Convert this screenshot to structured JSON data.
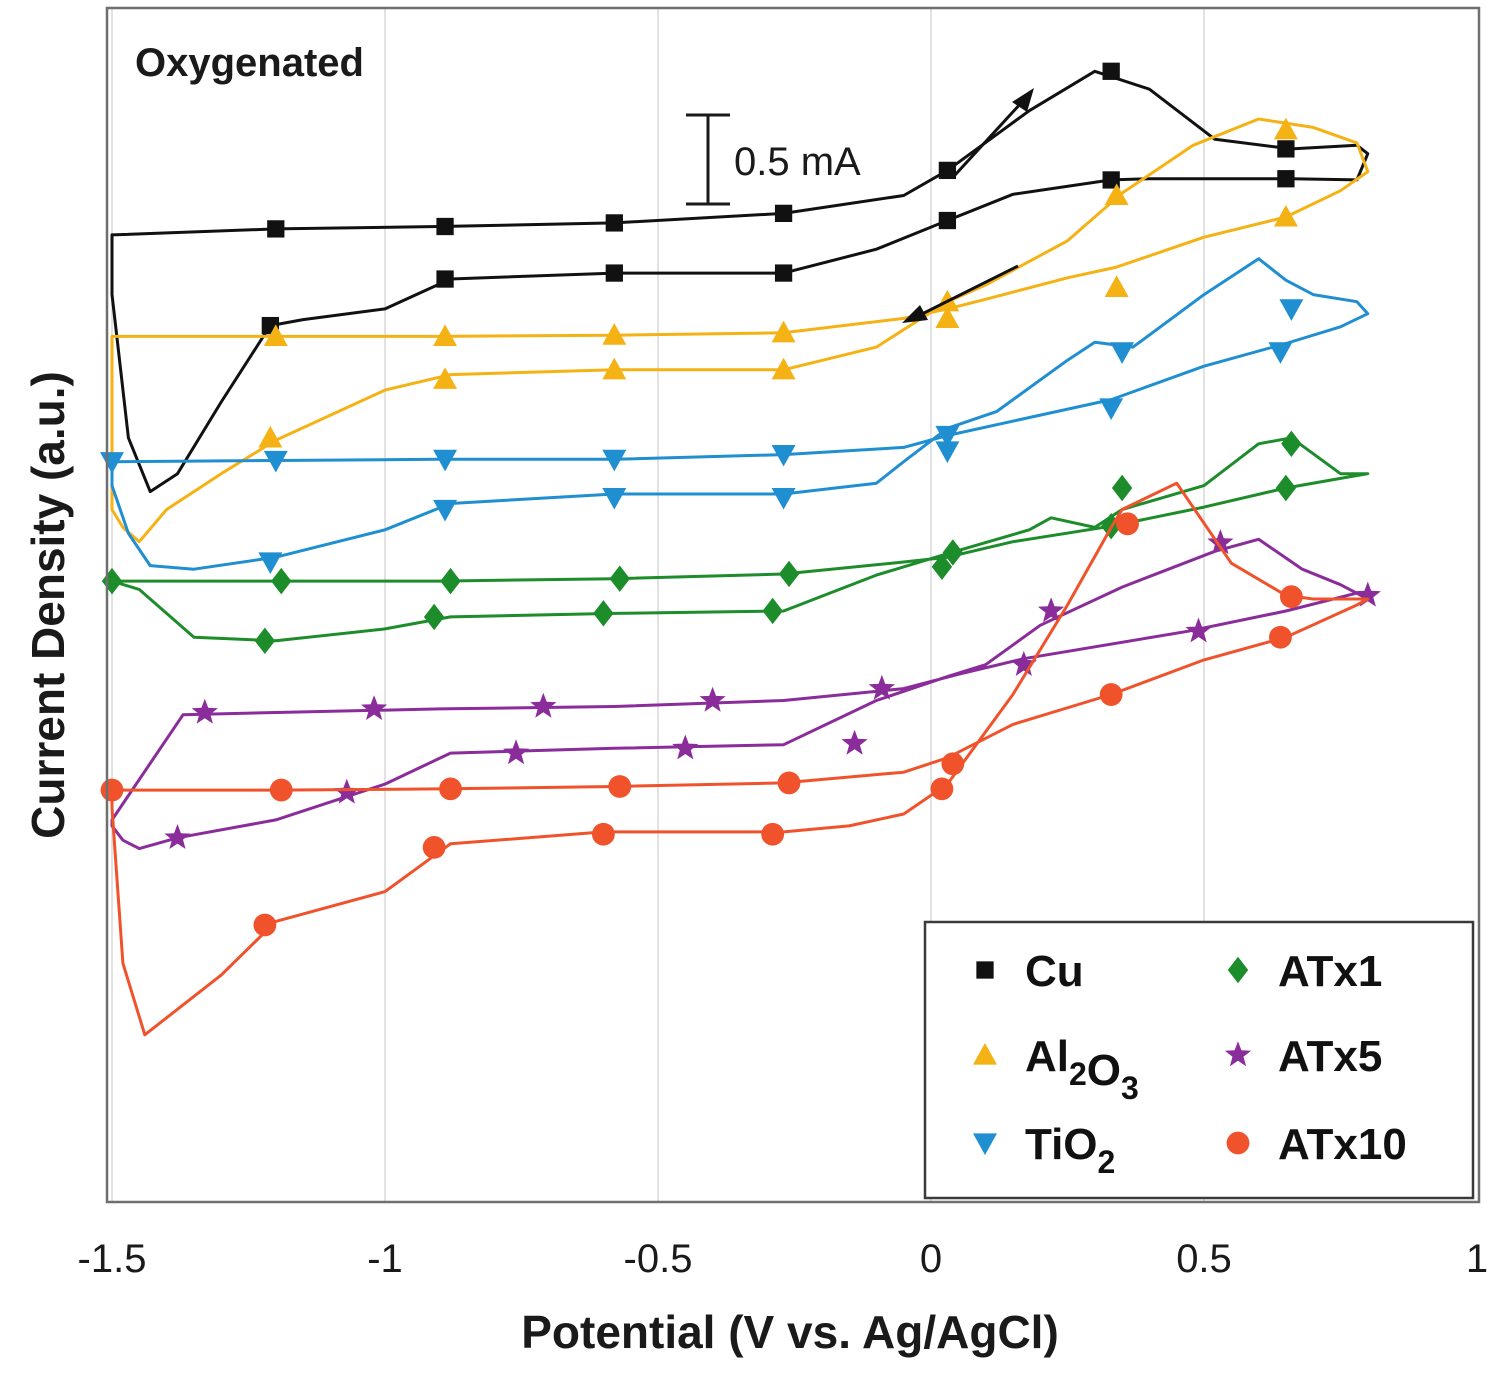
{
  "chart_data": {
    "type": "line",
    "title": "Oxygenated",
    "xlabel": "Potential (V vs. Ag/AgCl)",
    "ylabel": "Current Density (a.u.)",
    "xlim": [
      -1.5,
      1
    ],
    "ylim": [
      0,
      100
    ],
    "x_ticks": [
      -1.5,
      -1,
      -0.5,
      0,
      0.5,
      1
    ],
    "x_tick_labels": [
      "-1.5",
      "-1",
      "-0.5",
      "0",
      "0.5",
      "1"
    ],
    "grid": "vertical",
    "scale_bar": {
      "label": "0.5 mA",
      "value_mA": 0.5,
      "span_y": 8.3
    },
    "scan_direction": [
      "forward: rightward on the upper Cu branch",
      "reverse: leftward on the lower Cu branch"
    ],
    "legend_position": "bottom-right",
    "series": [
      {
        "name": "Cu",
        "key": "cu",
        "color": "#111111",
        "marker": "square",
        "path": [
          [
            -1.5,
            81.0
          ],
          [
            -1.2,
            81.5
          ],
          [
            -0.9,
            81.7
          ],
          [
            -0.58,
            82.0
          ],
          [
            -0.27,
            82.8
          ],
          [
            -0.05,
            84.3
          ],
          [
            0.03,
            86.4
          ],
          [
            0.18,
            91.4
          ],
          [
            0.3,
            94.7
          ],
          [
            0.4,
            93.2
          ],
          [
            0.52,
            89.0
          ],
          [
            0.66,
            88.2
          ],
          [
            0.78,
            88.5
          ],
          [
            0.8,
            87.8
          ],
          [
            0.78,
            85.6
          ],
          [
            0.66,
            85.7
          ],
          [
            0.4,
            85.7
          ],
          [
            0.33,
            85.6
          ],
          [
            0.15,
            84.4
          ],
          [
            0.03,
            82.2
          ],
          [
            -0.1,
            79.8
          ],
          [
            -0.27,
            77.8
          ],
          [
            -0.58,
            77.8
          ],
          [
            -0.88,
            77.3
          ],
          [
            -1.0,
            74.8
          ],
          [
            -1.15,
            73.9
          ],
          [
            -1.21,
            73.4
          ],
          [
            -1.3,
            67.0
          ],
          [
            -1.38,
            61.0
          ],
          [
            -1.43,
            59.5
          ],
          [
            -1.47,
            64.0
          ],
          [
            -1.49,
            72.0
          ],
          [
            -1.5,
            76.0
          ]
        ],
        "markers": [
          [
            -1.2,
            81.5
          ],
          [
            -0.89,
            81.7
          ],
          [
            -0.58,
            82.0
          ],
          [
            -0.27,
            82.8
          ],
          [
            0.03,
            86.4
          ],
          [
            0.33,
            94.7
          ],
          [
            0.65,
            88.2
          ],
          [
            0.65,
            85.7
          ],
          [
            0.33,
            85.6
          ],
          [
            0.03,
            82.2
          ],
          [
            -0.27,
            77.8
          ],
          [
            -0.58,
            77.8
          ],
          [
            -0.89,
            77.3
          ],
          [
            -1.21,
            73.4
          ]
        ]
      },
      {
        "name": "Al2O3",
        "key": "al2o3",
        "color": "#f5b215",
        "marker": "triangle-up",
        "path": [
          [
            -1.5,
            72.5
          ],
          [
            -1.2,
            72.5
          ],
          [
            -0.9,
            72.5
          ],
          [
            -0.58,
            72.6
          ],
          [
            -0.27,
            72.8
          ],
          [
            -0.05,
            74.0
          ],
          [
            0.03,
            74.8
          ],
          [
            0.1,
            75.6
          ],
          [
            0.25,
            77.4
          ],
          [
            0.34,
            78.3
          ],
          [
            0.5,
            80.8
          ],
          [
            0.65,
            82.5
          ],
          [
            0.75,
            84.7
          ],
          [
            0.8,
            86.3
          ],
          [
            0.78,
            88.7
          ],
          [
            0.7,
            90.0
          ],
          [
            0.6,
            90.7
          ],
          [
            0.48,
            88.5
          ],
          [
            0.35,
            84.5
          ],
          [
            0.25,
            80.5
          ],
          [
            0.1,
            76.8
          ],
          [
            0.03,
            75.4
          ],
          [
            -0.1,
            71.6
          ],
          [
            -0.27,
            69.7
          ],
          [
            -0.58,
            69.7
          ],
          [
            -0.88,
            69.3
          ],
          [
            -1.0,
            68.0
          ],
          [
            -1.2,
            63.8
          ],
          [
            -1.3,
            61.0
          ],
          [
            -1.4,
            58.0
          ],
          [
            -1.45,
            55.3
          ],
          [
            -1.48,
            56.5
          ],
          [
            -1.5,
            58.0
          ]
        ],
        "markers": [
          [
            -1.2,
            72.5
          ],
          [
            -0.89,
            72.5
          ],
          [
            -0.58,
            72.6
          ],
          [
            -0.27,
            72.8
          ],
          [
            0.03,
            74.0
          ],
          [
            0.34,
            76.6
          ],
          [
            0.65,
            82.5
          ],
          [
            0.65,
            89.8
          ],
          [
            0.34,
            84.3
          ],
          [
            0.03,
            75.4
          ],
          [
            -0.27,
            69.7
          ],
          [
            -0.58,
            69.7
          ],
          [
            -0.89,
            68.9
          ],
          [
            -1.21,
            64.0
          ]
        ]
      },
      {
        "name": "TiO2",
        "key": "tio2",
        "color": "#1f8fd2",
        "marker": "triangle-down",
        "path": [
          [
            -1.5,
            62.0
          ],
          [
            -1.2,
            62.1
          ],
          [
            -0.9,
            62.2
          ],
          [
            -0.58,
            62.2
          ],
          [
            -0.27,
            62.6
          ],
          [
            -0.05,
            63.2
          ],
          [
            0.03,
            64.2
          ],
          [
            0.33,
            67.2
          ],
          [
            0.5,
            70.0
          ],
          [
            0.65,
            71.9
          ],
          [
            0.75,
            73.3
          ],
          [
            0.8,
            74.4
          ],
          [
            0.78,
            75.4
          ],
          [
            0.7,
            76.0
          ],
          [
            0.65,
            77.2
          ],
          [
            0.6,
            79.0
          ],
          [
            0.5,
            76.0
          ],
          [
            0.37,
            71.6
          ],
          [
            0.3,
            72.0
          ],
          [
            0.25,
            70.5
          ],
          [
            0.12,
            66.2
          ],
          [
            0.03,
            64.8
          ],
          [
            -0.05,
            62.0
          ],
          [
            -0.1,
            60.2
          ],
          [
            -0.27,
            59.3
          ],
          [
            -0.58,
            59.3
          ],
          [
            -0.88,
            58.5
          ],
          [
            -1.0,
            56.3
          ],
          [
            -1.2,
            54.0
          ],
          [
            -1.35,
            53.0
          ],
          [
            -1.43,
            53.3
          ],
          [
            -1.47,
            56.0
          ],
          [
            -1.5,
            60.0
          ]
        ],
        "markers": [
          [
            -1.5,
            62.0
          ],
          [
            -1.2,
            62.1
          ],
          [
            -0.89,
            62.2
          ],
          [
            -0.58,
            62.2
          ],
          [
            -0.27,
            62.6
          ],
          [
            0.03,
            62.9
          ],
          [
            0.33,
            66.5
          ],
          [
            0.64,
            71.2
          ],
          [
            0.66,
            74.8
          ],
          [
            0.35,
            71.2
          ],
          [
            0.03,
            64.2
          ],
          [
            -0.27,
            59.0
          ],
          [
            -0.58,
            59.0
          ],
          [
            -0.89,
            58.0
          ],
          [
            -1.21,
            53.6
          ]
        ]
      },
      {
        "name": "ATx1",
        "key": "atx1",
        "color": "#1d8c2a",
        "marker": "diamond",
        "path": [
          [
            -1.5,
            52.0
          ],
          [
            -1.2,
            52.0
          ],
          [
            -0.9,
            52.0
          ],
          [
            -0.58,
            52.2
          ],
          [
            -0.27,
            52.6
          ],
          [
            -0.05,
            53.6
          ],
          [
            0.03,
            54.0
          ],
          [
            0.15,
            55.3
          ],
          [
            0.33,
            56.6
          ],
          [
            0.5,
            58.2
          ],
          [
            0.65,
            59.8
          ],
          [
            0.75,
            60.6
          ],
          [
            0.8,
            61.0
          ],
          [
            0.75,
            61.0
          ],
          [
            0.72,
            62.0
          ],
          [
            0.66,
            64.0
          ],
          [
            0.6,
            63.5
          ],
          [
            0.5,
            60.0
          ],
          [
            0.35,
            58.0
          ],
          [
            0.3,
            56.5
          ],
          [
            0.22,
            57.3
          ],
          [
            0.18,
            56.3
          ],
          [
            0.03,
            54.3
          ],
          [
            -0.1,
            52.5
          ],
          [
            -0.27,
            49.5
          ],
          [
            -0.58,
            49.3
          ],
          [
            -0.88,
            49.0
          ],
          [
            -1.0,
            48.0
          ],
          [
            -1.2,
            47.0
          ],
          [
            -1.35,
            47.3
          ],
          [
            -1.45,
            51.3
          ],
          [
            -1.5,
            52.0
          ]
        ],
        "markers": [
          [
            -1.5,
            52.0
          ],
          [
            -1.19,
            52.0
          ],
          [
            -0.88,
            52.0
          ],
          [
            -0.57,
            52.2
          ],
          [
            -0.26,
            52.6
          ],
          [
            0.02,
            53.2
          ],
          [
            0.33,
            56.6
          ],
          [
            0.65,
            59.8
          ],
          [
            0.66,
            63.5
          ],
          [
            0.35,
            59.8
          ],
          [
            0.04,
            54.4
          ],
          [
            -0.29,
            49.5
          ],
          [
            -0.6,
            49.3
          ],
          [
            -0.91,
            49.0
          ],
          [
            -1.22,
            47.0
          ]
        ]
      },
      {
        "name": "ATx5",
        "key": "atx5",
        "color": "#8a2c9a",
        "marker": "star",
        "path": [
          [
            -1.5,
            32.0
          ],
          [
            -1.37,
            40.8
          ],
          [
            -1.2,
            41.0
          ],
          [
            -0.9,
            41.3
          ],
          [
            -0.58,
            41.5
          ],
          [
            -0.27,
            42.0
          ],
          [
            -0.05,
            43.0
          ],
          [
            0.05,
            44.2
          ],
          [
            0.17,
            45.5
          ],
          [
            0.47,
            47.8
          ],
          [
            0.65,
            49.5
          ],
          [
            0.78,
            51.0
          ],
          [
            0.8,
            50.5
          ],
          [
            0.75,
            51.7
          ],
          [
            0.68,
            53.0
          ],
          [
            0.6,
            55.5
          ],
          [
            0.52,
            54.5
          ],
          [
            0.35,
            51.5
          ],
          [
            0.2,
            48.3
          ],
          [
            0.1,
            45.0
          ],
          [
            0.03,
            44.0
          ],
          [
            -0.1,
            42.0
          ],
          [
            -0.27,
            38.3
          ],
          [
            -0.58,
            38.0
          ],
          [
            -0.88,
            37.6
          ],
          [
            -1.0,
            35.0
          ],
          [
            -1.2,
            32.0
          ],
          [
            -1.38,
            30.5
          ],
          [
            -1.45,
            29.6
          ],
          [
            -1.48,
            30.3
          ],
          [
            -1.5,
            31.5
          ]
        ],
        "markers": [
          [
            -1.33,
            41.0
          ],
          [
            -1.02,
            41.3
          ],
          [
            -0.71,
            41.5
          ],
          [
            -0.4,
            42.0
          ],
          [
            -0.09,
            43.0
          ],
          [
            0.17,
            45.0
          ],
          [
            0.49,
            47.8
          ],
          [
            0.8,
            50.8
          ],
          [
            0.53,
            55.2
          ],
          [
            0.22,
            49.5
          ],
          [
            -0.14,
            38.4
          ],
          [
            -0.45,
            38.0
          ],
          [
            -0.76,
            37.6
          ],
          [
            -1.07,
            34.3
          ],
          [
            -1.38,
            30.5
          ]
        ]
      },
      {
        "name": "ATx10",
        "key": "atx10",
        "color": "#f0532c",
        "marker": "circle",
        "path": [
          [
            -1.5,
            34.5
          ],
          [
            -1.2,
            34.5
          ],
          [
            -0.9,
            34.6
          ],
          [
            -0.58,
            34.8
          ],
          [
            -0.27,
            35.1
          ],
          [
            -0.05,
            36.0
          ],
          [
            0.03,
            37.2
          ],
          [
            0.15,
            40.0
          ],
          [
            0.33,
            42.5
          ],
          [
            0.5,
            45.4
          ],
          [
            0.65,
            47.3
          ],
          [
            0.78,
            50.0
          ],
          [
            0.8,
            50.5
          ],
          [
            0.7,
            50.5
          ],
          [
            0.65,
            50.8
          ],
          [
            0.55,
            53.5
          ],
          [
            0.45,
            60.2
          ],
          [
            0.35,
            58.0
          ],
          [
            0.33,
            56.5
          ],
          [
            0.25,
            50.0
          ],
          [
            0.15,
            42.5
          ],
          [
            0.03,
            35.0
          ],
          [
            -0.05,
            32.5
          ],
          [
            -0.15,
            31.5
          ],
          [
            -0.27,
            31.0
          ],
          [
            -0.6,
            31.0
          ],
          [
            -0.88,
            30.0
          ],
          [
            -1.0,
            26.0
          ],
          [
            -1.2,
            23.5
          ],
          [
            -1.3,
            19.0
          ],
          [
            -1.44,
            14.0
          ],
          [
            -1.48,
            20.0
          ],
          [
            -1.5,
            33.0
          ]
        ],
        "markers": [
          [
            -1.5,
            34.5
          ],
          [
            -1.19,
            34.5
          ],
          [
            -0.88,
            34.6
          ],
          [
            -0.57,
            34.8
          ],
          [
            -0.26,
            35.1
          ],
          [
            0.04,
            36.7
          ],
          [
            0.33,
            42.5
          ],
          [
            0.64,
            47.3
          ],
          [
            0.66,
            50.7
          ],
          [
            0.36,
            56.8
          ],
          [
            0.02,
            34.6
          ],
          [
            -0.29,
            30.8
          ],
          [
            -0.6,
            30.8
          ],
          [
            -0.91,
            29.7
          ],
          [
            -1.22,
            23.2
          ]
        ]
      }
    ],
    "legend": [
      {
        "key": "cu",
        "label": "Cu",
        "label_sub": []
      },
      {
        "key": "al2o3",
        "label": "Al2O3",
        "label_sub": [
          [
            "Al",
            false
          ],
          [
            "2",
            true
          ],
          [
            "O",
            false
          ],
          [
            "3",
            true
          ]
        ]
      },
      {
        "key": "tio2",
        "label": "TiO2",
        "label_sub": [
          [
            "TiO",
            false
          ],
          [
            "2",
            true
          ]
        ]
      },
      {
        "key": "atx1",
        "label": "ATx1",
        "label_sub": []
      },
      {
        "key": "atx5",
        "label": "ATx5",
        "label_sub": []
      },
      {
        "key": "atx10",
        "label": "ATx10",
        "label_sub": []
      }
    ]
  }
}
